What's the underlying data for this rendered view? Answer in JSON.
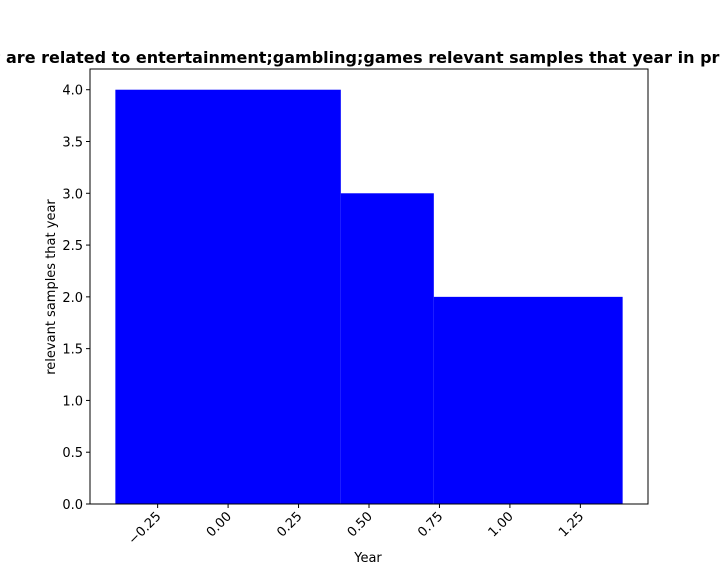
{
  "chart_data": {
    "type": "bar",
    "title": "Samples that are related to entertainment;gambling;games relevant samples that year in private dataset",
    "xlabel": "Year",
    "ylabel": "relevant samples that year",
    "bars": [
      {
        "x_start": -0.4,
        "x_end": 0.4,
        "value": 4
      },
      {
        "x_start": 0.4,
        "x_end": 0.73,
        "value": 3
      },
      {
        "x_start": 0.73,
        "x_end": 1.4,
        "value": 2
      }
    ],
    "bar_color": "#0000ff",
    "xlim": [
      -0.49,
      1.49
    ],
    "ylim": [
      0,
      4.2
    ],
    "x_ticks": [
      -0.25,
      0.0,
      0.25,
      0.5,
      0.75,
      1.0,
      1.25
    ],
    "x_tick_labels": [
      "−0.25",
      "0.00",
      "0.25",
      "0.50",
      "0.75",
      "1.00",
      "1.25"
    ],
    "y_ticks": [
      0.0,
      0.5,
      1.0,
      1.5,
      2.0,
      2.5,
      3.0,
      3.5,
      4.0
    ],
    "y_tick_labels": [
      "0.0",
      "0.5",
      "1.0",
      "1.5",
      "2.0",
      "2.5",
      "3.0",
      "3.5",
      "4.0"
    ],
    "grid": false,
    "legend": "none"
  }
}
